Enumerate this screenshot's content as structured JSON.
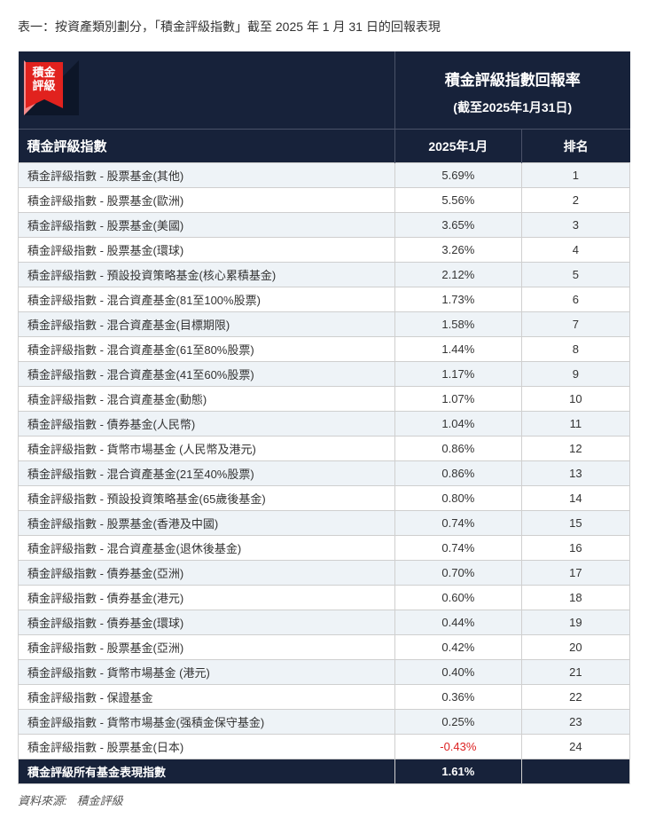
{
  "title": "表一：按資產類別劃分，「積金評級指數」截至 2025 年 1 月 31 日的回報表現",
  "logo": {
    "line1": "積金",
    "line2": "評級"
  },
  "header": {
    "return_title": "積金評級指數回報率",
    "return_sub": "(截至2025年1月31日)"
  },
  "columns": {
    "name": "積金評級指數",
    "month": "2025年1月",
    "rank": "排名"
  },
  "rows": [
    {
      "name": "積金評級指數 - 股票基金(其他)",
      "return": "5.69%",
      "rank": "1"
    },
    {
      "name": "積金評級指數 - 股票基金(歐洲)",
      "return": "5.56%",
      "rank": "2"
    },
    {
      "name": "積金評級指數 - 股票基金(美國)",
      "return": "3.65%",
      "rank": "3"
    },
    {
      "name": "積金評級指數 - 股票基金(環球)",
      "return": "3.26%",
      "rank": "4"
    },
    {
      "name": "積金評級指數 - 預設投資策略基金(核心累積基金)",
      "return": "2.12%",
      "rank": "5"
    },
    {
      "name": "積金評級指數 - 混合資產基金(81至100%股票)",
      "return": "1.73%",
      "rank": "6"
    },
    {
      "name": "積金評級指數 - 混合資產基金(目標期限)",
      "return": "1.58%",
      "rank": "7"
    },
    {
      "name": "積金評級指數 - 混合資產基金(61至80%股票)",
      "return": "1.44%",
      "rank": "8"
    },
    {
      "name": "積金評級指數 - 混合資產基金(41至60%股票)",
      "return": "1.17%",
      "rank": "9"
    },
    {
      "name": "積金評級指數 - 混合資產基金(動態)",
      "return": "1.07%",
      "rank": "10"
    },
    {
      "name": "積金評級指數 - 債券基金(人民幣)",
      "return": "1.04%",
      "rank": "11"
    },
    {
      "name": "積金評級指數 - 貨幣市場基金 (人民幣及港元)",
      "return": "0.86%",
      "rank": "12"
    },
    {
      "name": "積金評級指數 - 混合資產基金(21至40%股票)",
      "return": "0.86%",
      "rank": "13"
    },
    {
      "name": "積金評級指數 - 預設投資策略基金(65歲後基金)",
      "return": "0.80%",
      "rank": "14"
    },
    {
      "name": "積金評級指數 - 股票基金(香港及中國)",
      "return": "0.74%",
      "rank": "15"
    },
    {
      "name": "積金評級指數 - 混合資產基金(退休後基金)",
      "return": "0.74%",
      "rank": "16"
    },
    {
      "name": "積金評級指數 - 債券基金(亞洲)",
      "return": "0.70%",
      "rank": "17"
    },
    {
      "name": "積金評級指數 - 債券基金(港元)",
      "return": "0.60%",
      "rank": "18"
    },
    {
      "name": "積金評級指數 - 債券基金(環球)",
      "return": "0.44%",
      "rank": "19"
    },
    {
      "name": "積金評級指數 - 股票基金(亞洲)",
      "return": "0.42%",
      "rank": "20"
    },
    {
      "name": "積金評級指數 - 貨幣市場基金 (港元)",
      "return": "0.40%",
      "rank": "21"
    },
    {
      "name": "積金評級指數 - 保證基金",
      "return": "0.36%",
      "rank": "22"
    },
    {
      "name": "積金評級指數 - 貨幣市場基金(强積金保守基金)",
      "return": "0.25%",
      "rank": "23"
    },
    {
      "name": "積金評級指數 - 股票基金(日本)",
      "return": "-0.43%",
      "rank": "24",
      "neg": true
    }
  ],
  "total": {
    "label": "積金評級所有基金表現指數",
    "return": "1.61%"
  },
  "source_label": "資料來源:",
  "source_value": "積金評級"
}
